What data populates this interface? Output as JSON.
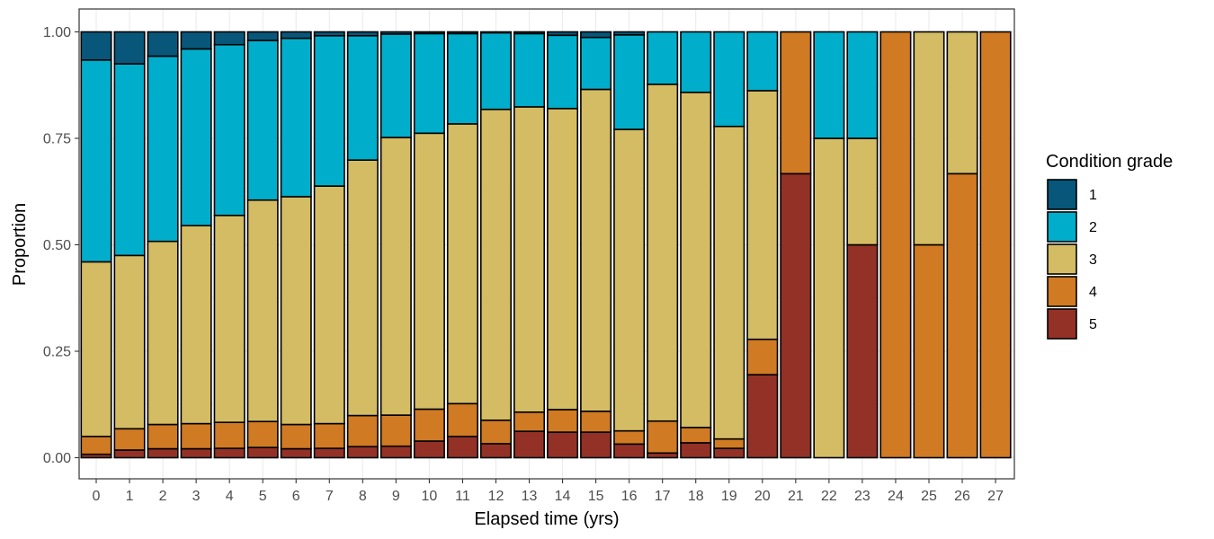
{
  "chart_data": {
    "type": "bar",
    "stacked": true,
    "title": "",
    "xlabel": "Elapsed time (yrs)",
    "ylabel": "Proportion",
    "ylim": [
      0,
      1
    ],
    "yticks": [
      "0.00",
      "0.25",
      "0.50",
      "0.75",
      "1.00"
    ],
    "categories": [
      "0",
      "1",
      "2",
      "3",
      "4",
      "5",
      "6",
      "7",
      "8",
      "9",
      "10",
      "11",
      "12",
      "13",
      "14",
      "15",
      "16",
      "17",
      "18",
      "19",
      "20",
      "21",
      "22",
      "23",
      "24",
      "25",
      "26",
      "27"
    ],
    "legend": {
      "title": "Condition grade",
      "position": "right"
    },
    "grid": true,
    "series": [
      {
        "name": "5",
        "color": "#943126",
        "values": [
          0.008,
          0.018,
          0.021,
          0.021,
          0.022,
          0.024,
          0.021,
          0.022,
          0.026,
          0.027,
          0.039,
          0.05,
          0.033,
          0.062,
          0.06,
          0.06,
          0.032,
          0.011,
          0.035,
          0.022,
          0.195,
          0.667,
          0,
          0.5,
          0,
          0,
          0,
          0
        ]
      },
      {
        "name": "4",
        "color": "#d07a24",
        "values": [
          0.042,
          0.05,
          0.057,
          0.059,
          0.061,
          0.061,
          0.057,
          0.058,
          0.073,
          0.073,
          0.075,
          0.077,
          0.055,
          0.045,
          0.053,
          0.049,
          0.031,
          0.075,
          0.036,
          0.022,
          0.083,
          0.333,
          0,
          0,
          1,
          0.5,
          0.667,
          1
        ]
      },
      {
        "name": "3",
        "color": "#d4bc64",
        "values": [
          0.41,
          0.407,
          0.43,
          0.465,
          0.486,
          0.52,
          0.535,
          0.558,
          0.6,
          0.652,
          0.648,
          0.657,
          0.73,
          0.717,
          0.707,
          0.756,
          0.708,
          0.791,
          0.787,
          0.734,
          0.584,
          0,
          0.75,
          0.25,
          0,
          0.5,
          0.333,
          0
        ]
      },
      {
        "name": "2",
        "color": "#00aecb",
        "values": [
          0.474,
          0.45,
          0.435,
          0.415,
          0.401,
          0.375,
          0.372,
          0.353,
          0.292,
          0.243,
          0.234,
          0.212,
          0.18,
          0.172,
          0.172,
          0.122,
          0.222,
          0.123,
          0.142,
          0.222,
          0.138,
          0,
          0.25,
          0.25,
          0,
          0,
          0,
          0
        ]
      },
      {
        "name": "1",
        "color": "#08577a",
        "values": [
          0.066,
          0.075,
          0.057,
          0.04,
          0.03,
          0.02,
          0.015,
          0.009,
          0.009,
          0.005,
          0.004,
          0.004,
          0.002,
          0.004,
          0.008,
          0.013,
          0.007,
          0,
          0,
          0,
          0,
          0,
          0,
          0,
          0,
          0,
          0,
          0
        ]
      }
    ],
    "legend_order": [
      "1",
      "2",
      "3",
      "4",
      "5"
    ]
  }
}
